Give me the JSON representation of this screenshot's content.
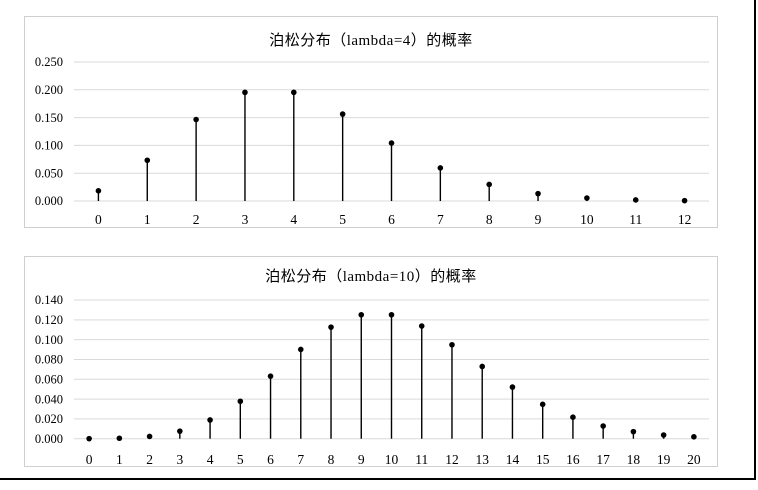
{
  "page": {
    "background": "#ffffff",
    "frame_color": "#000000",
    "panel_border_color": "#cfcfcf"
  },
  "chart_data": [
    {
      "type": "stem",
      "title": "泊松分布（lambda=4）的概率",
      "xlabel": "",
      "ylabel": "",
      "categories": [
        "0",
        "1",
        "2",
        "3",
        "4",
        "5",
        "6",
        "7",
        "8",
        "9",
        "10",
        "11",
        "12"
      ],
      "values": [
        0.0183,
        0.0733,
        0.1465,
        0.1954,
        0.1954,
        0.1563,
        0.1042,
        0.0595,
        0.0298,
        0.0132,
        0.0053,
        0.0019,
        0.0006
      ],
      "ylim": [
        0,
        0.25
      ],
      "ytick_step": 0.05,
      "ytick_labels": [
        "0.000",
        "0.050",
        "0.100",
        "0.150",
        "0.200",
        "0.250"
      ],
      "grid": true,
      "legend": false,
      "marker": "circle",
      "marker_color": "#000000",
      "stem_color": "#000000",
      "gridline_color": "#d9d9d9"
    },
    {
      "type": "stem",
      "title": "泊松分布（lambda=10）的概率",
      "xlabel": "",
      "ylabel": "",
      "categories": [
        "0",
        "1",
        "2",
        "3",
        "4",
        "5",
        "6",
        "7",
        "8",
        "9",
        "10",
        "11",
        "12",
        "13",
        "14",
        "15",
        "16",
        "17",
        "18",
        "19",
        "20"
      ],
      "values": [
        5e-05,
        0.00045,
        0.0023,
        0.0076,
        0.0189,
        0.0378,
        0.0631,
        0.0901,
        0.1126,
        0.1251,
        0.1251,
        0.1137,
        0.0948,
        0.0729,
        0.0521,
        0.0347,
        0.0217,
        0.0128,
        0.0071,
        0.0037,
        0.0019
      ],
      "ylim": [
        0,
        0.14
      ],
      "ytick_step": 0.02,
      "ytick_labels": [
        "0.000",
        "0.020",
        "0.040",
        "0.060",
        "0.080",
        "0.100",
        "0.120",
        "0.140"
      ],
      "grid": true,
      "legend": false,
      "marker": "circle",
      "marker_color": "#000000",
      "stem_color": "#000000",
      "gridline_color": "#d9d9d9"
    }
  ]
}
